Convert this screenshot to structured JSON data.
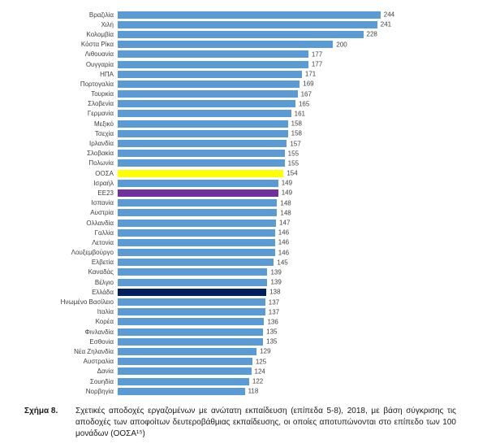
{
  "chart_data": {
    "type": "bar",
    "orientation": "horizontal",
    "title": "",
    "xlabel": "",
    "ylabel": "",
    "xlim": [
      0,
      260
    ],
    "grid": false,
    "legend": false,
    "value_labels": true,
    "default_color": "#5B9BD5",
    "highlight_colors": {
      "ΟΟΣΑ": "#FFFF00",
      "ΕΕ23": "#7030A0",
      "Ελλάδα": "#002060"
    },
    "categories": [
      "Βραζιλία",
      "Χιλή",
      "Κολομβία",
      "Κόστα Ρίκα",
      "Λιθουανία",
      "Ουγγαρία",
      "ΗΠΑ",
      "Πορτογαλία",
      "Τουρκία",
      "Σλοβενία",
      "Γερμανία",
      "Μεξικό",
      "Τσεχία",
      "Ιρλανδία",
      "Σλοβακία",
      "Πολωνία",
      "ΟΟΣΑ",
      "Ισραήλ",
      "ΕΕ23",
      "Ισπανία",
      "Αυστρία",
      "Ολλανδία",
      "Γαλλία",
      "Λετονία",
      "Λουξεμβούργο",
      "Ελβετία",
      "Καναδάς",
      "Βέλγιο",
      "Ελλάδα",
      "Ηνωμένο Βασίλειο",
      "Ιταλία",
      "Κορέα",
      "Φινλανδία",
      "Εσθονία",
      "Νέα Ζηλανδία",
      "Αυστραλία",
      "Δανία",
      "Σουηδία",
      "Νορβηγία"
    ],
    "values": [
      244,
      241,
      228,
      200,
      177,
      177,
      171,
      169,
      167,
      165,
      161,
      158,
      158,
      157,
      155,
      155,
      154,
      149,
      149,
      148,
      148,
      147,
      146,
      146,
      146,
      145,
      139,
      139,
      138,
      137,
      137,
      136,
      135,
      135,
      129,
      125,
      124,
      122,
      118
    ]
  },
  "caption": {
    "label": "Σχήμα 8.",
    "text": "Σχετικές αποδοχές εργαζομένων με ανώτατη εκπαίδευση (επίπεδα 5-8), 2018, με βάση σύγκρισης τις αποδοχές των αποφοίτων δευτεροβάθμιας εκπαίδευσης, οι οποίες αποτυπώνονται στο επίπεδο των 100 μονάδων (ΟΟΣΑ¹⁵)"
  }
}
